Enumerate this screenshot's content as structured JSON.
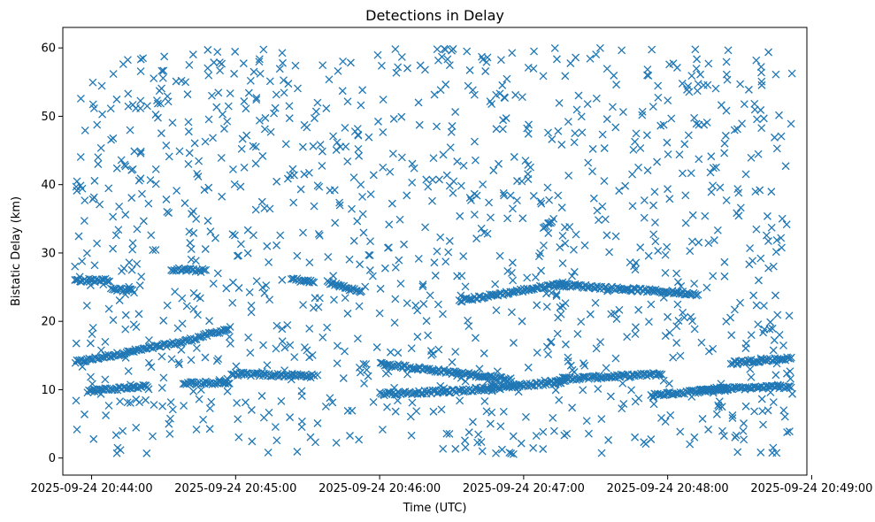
{
  "chart_data": {
    "type": "scatter",
    "title": "Detections in Delay",
    "xlabel": "Time (UTC)",
    "ylabel": "Bistatic Delay (km)",
    "marker": "x",
    "color": "#1f77b4",
    "xlim": [
      "2025-09-24 20:43:48",
      "2025-09-24 20:48:58"
    ],
    "ylim": [
      -2.5,
      63
    ],
    "xticks": [
      "2025-09-24 20:44:00",
      "2025-09-24 20:45:00",
      "2025-09-24 20:46:00",
      "2025-09-24 20:47:00",
      "2025-09-24 20:48:00",
      "2025-09-24 20:49:00"
    ],
    "yticks": [
      0,
      10,
      20,
      30,
      40,
      50,
      60
    ],
    "grid": false,
    "time_range": [
      "2025-09-24 20:43:53",
      "2025-09-24 20:48:52"
    ],
    "tracks": [
      {
        "from": [
          "2025-09-24 20:43:53",
          14.0
        ],
        "to": [
          "2025-09-24 20:44:38",
          17.0
        ]
      },
      {
        "from": [
          "2025-09-24 20:44:38",
          17.0
        ],
        "to": [
          "2025-09-24 20:44:58",
          19.0
        ]
      },
      {
        "from": [
          "2025-09-24 20:44:58",
          12.3
        ],
        "to": [
          "2025-09-24 20:45:33",
          12.0
        ]
      },
      {
        "from": [
          "2025-09-24 20:46:00",
          13.8
        ],
        "to": [
          "2025-09-24 20:46:55",
          11.5
        ]
      },
      {
        "from": [
          "2025-09-24 20:47:13",
          11.5
        ],
        "to": [
          "2025-09-24 20:47:58",
          12.3
        ]
      },
      {
        "from": [
          "2025-09-24 20:47:53",
          9.2
        ],
        "to": [
          "2025-09-24 20:48:27",
          10.2
        ]
      },
      {
        "from": [
          "2025-09-24 20:48:27",
          14.0
        ],
        "to": [
          "2025-09-24 20:48:52",
          14.6
        ]
      },
      {
        "from": [
          "2025-09-24 20:43:53",
          26.0
        ],
        "to": [
          "2025-09-24 20:44:08",
          26.0
        ]
      },
      {
        "from": [
          "2025-09-24 20:44:08",
          24.8
        ],
        "to": [
          "2025-09-24 20:44:18",
          24.4
        ]
      },
      {
        "from": [
          "2025-09-24 20:44:33",
          27.6
        ],
        "to": [
          "2025-09-24 20:44:48",
          27.4
        ]
      },
      {
        "from": [
          "2025-09-24 20:45:23",
          26.2
        ],
        "to": [
          "2025-09-24 20:45:33",
          25.7
        ]
      },
      {
        "from": [
          "2025-09-24 20:45:38",
          25.8
        ],
        "to": [
          "2025-09-24 20:45:53",
          24.2
        ]
      },
      {
        "from": [
          "2025-09-24 20:46:33",
          23.0
        ],
        "to": [
          "2025-09-24 20:47:18",
          25.6
        ]
      },
      {
        "from": [
          "2025-09-24 20:47:13",
          25.4
        ],
        "to": [
          "2025-09-24 20:48:13",
          24.0
        ]
      },
      {
        "from": [
          "2025-09-24 20:43:58",
          9.8
        ],
        "to": [
          "2025-09-24 20:44:23",
          10.5
        ]
      },
      {
        "from": [
          "2025-09-24 20:44:38",
          10.9
        ],
        "to": [
          "2025-09-24 20:44:58",
          11.1
        ]
      },
      {
        "from": [
          "2025-09-24 20:46:00",
          9.4
        ],
        "to": [
          "2025-09-24 20:46:33",
          9.8
        ]
      },
      {
        "from": [
          "2025-09-24 20:46:33",
          9.8
        ],
        "to": [
          "2025-09-24 20:47:18",
          11.2
        ]
      },
      {
        "from": [
          "2025-09-24 20:48:13",
          10.0
        ],
        "to": [
          "2025-09-24 20:48:52",
          10.5
        ]
      },
      {
        "from": [
          "2025-09-24 20:47:08",
          33.6
        ],
        "to": [
          "2025-09-24 20:47:13",
          35.0
        ]
      }
    ],
    "scatter": {
      "count": 1150,
      "y_range": [
        0.5,
        60
      ]
    }
  }
}
